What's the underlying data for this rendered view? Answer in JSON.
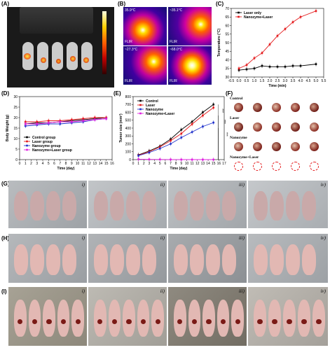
{
  "panel_labels": {
    "A": "(A)",
    "B": "(B)",
    "C": "(C)",
    "D": "(D)",
    "E": "(E)",
    "F": "(F)",
    "G": "(G)",
    "H": "(H)",
    "I": "(I)"
  },
  "thermal_readouts": [
    "35.9°C",
    "~35.1°C",
    "~27.3°C",
    "~68.0°C"
  ],
  "thermal_brand": "FLIR",
  "group_labels": [
    "Control",
    "Laser",
    "Nanozyme",
    "Nanozyme+Laser"
  ],
  "roman": [
    "i)",
    "ii)",
    "iii)",
    "iv)"
  ],
  "colors": {
    "black": "#000000",
    "red": "#e41a1c",
    "blue": "#2233cc",
    "magenta": "#e020e0"
  },
  "chart_data": [
    {
      "type": "line",
      "panel": "C",
      "xlabel": "Time (min)",
      "ylabel": "Temperature (°C)",
      "xlim": [
        -0.5,
        5.5
      ],
      "ylim": [
        30,
        70
      ],
      "xticks": [
        "-0.5",
        "0.0",
        "0.5",
        "1.0",
        "1.5",
        "2.0",
        "2.5",
        "3.0",
        "3.5",
        "4.0",
        "4.5",
        "5.0",
        "5.5"
      ],
      "yticks": [
        "30",
        "35",
        "40",
        "45",
        "50",
        "55",
        "60",
        "65",
        "70"
      ],
      "x": [
        0,
        0.5,
        1.0,
        1.5,
        2.0,
        2.5,
        3.0,
        3.5,
        4.0,
        5.0
      ],
      "series": [
        {
          "name": "Laser only",
          "color": "#000000",
          "values": [
            34,
            34.5,
            35,
            36.5,
            36,
            36,
            36,
            36.5,
            36.5,
            37.5
          ]
        },
        {
          "name": "Nanozyme+Laser",
          "color": "#e41a1c",
          "values": [
            35,
            37,
            41,
            44,
            49,
            54,
            58,
            62,
            65,
            68.5
          ]
        }
      ],
      "legend": "top-left"
    },
    {
      "type": "line",
      "panel": "D",
      "xlabel": "Time (day)",
      "ylabel": "Body Weight (g)",
      "xlim": [
        0,
        16
      ],
      "ylim": [
        0,
        30
      ],
      "xticks": [
        "0",
        "1",
        "2",
        "3",
        "4",
        "5",
        "6",
        "7",
        "8",
        "9",
        "10",
        "11",
        "12",
        "13",
        "14",
        "15",
        "16"
      ],
      "yticks": [
        "0",
        "5",
        "10",
        "15",
        "20",
        "25",
        "30"
      ],
      "x": [
        1,
        3,
        5,
        7,
        9,
        11,
        13,
        15
      ],
      "series": [
        {
          "name": "Control group",
          "color": "#000000",
          "values": [
            17,
            17.5,
            17.5,
            18,
            18.5,
            19,
            19.5,
            20
          ]
        },
        {
          "name": "Laser group",
          "color": "#e41a1c",
          "values": [
            18,
            18,
            18.5,
            18.5,
            19,
            19.5,
            20,
            20
          ]
        },
        {
          "name": "Nanozyme group",
          "color": "#2233cc",
          "values": [
            16,
            16.5,
            17,
            17,
            17.5,
            18,
            19,
            19.5
          ]
        },
        {
          "name": "Nanozyme+Laser group",
          "color": "#e020e0",
          "values": [
            17,
            17,
            17.5,
            18,
            18,
            18.5,
            19,
            19.5
          ]
        }
      ],
      "legend": "bottom-left"
    },
    {
      "type": "line",
      "panel": "E",
      "xlabel": "Time (day)",
      "ylabel": "Tumor size (mm³)",
      "xlim": [
        0,
        17
      ],
      "ylim": [
        0,
        800
      ],
      "xticks": [
        "0",
        "1",
        "2",
        "3",
        "4",
        "5",
        "6",
        "7",
        "8",
        "9",
        "10",
        "11",
        "12",
        "13",
        "14",
        "15",
        "16",
        "17"
      ],
      "yticks": [
        "0",
        "100",
        "200",
        "300",
        "400",
        "500",
        "600",
        "700",
        "800"
      ],
      "x": [
        1,
        3,
        5,
        7,
        9,
        11,
        13,
        15
      ],
      "series": [
        {
          "name": "Control",
          "color": "#000000",
          "values": [
            60,
            110,
            170,
            260,
            380,
            480,
            600,
            700
          ]
        },
        {
          "name": "Laser",
          "color": "#e41a1c",
          "values": [
            55,
            100,
            160,
            240,
            330,
            450,
            560,
            660
          ]
        },
        {
          "name": "Nanozyme",
          "color": "#2233cc",
          "values": [
            50,
            90,
            140,
            200,
            280,
            350,
            420,
            470
          ]
        },
        {
          "name": "Nanozyme+Laser",
          "color": "#e020e0",
          "values": [
            5,
            3,
            2,
            1,
            0,
            0,
            0,
            0
          ]
        }
      ],
      "legend": "top-left",
      "annotations": [
        "***",
        "***",
        "***"
      ]
    }
  ]
}
